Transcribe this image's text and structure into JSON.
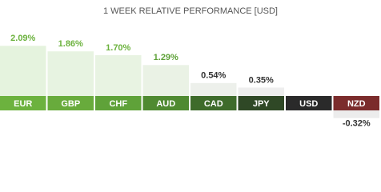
{
  "chart_data": {
    "type": "bar",
    "title": "1 WEEK RELATIVE PERFORMANCE [USD]",
    "categories": [
      "EUR",
      "GBP",
      "CHF",
      "AUD",
      "CAD",
      "JPY",
      "USD",
      "NZD"
    ],
    "values": [
      2.09,
      1.86,
      1.7,
      1.29,
      0.54,
      0.35,
      0,
      -0.32
    ],
    "value_labels": [
      "2.09%",
      "1.86%",
      "1.70%",
      "1.29%",
      "0.54%",
      "0.35%",
      null,
      "-0.32%"
    ],
    "colors": [
      "#e5f3de",
      "#e7f3e1",
      "#e8f3e2",
      "#eaf2e5",
      "#edf0eb",
      "#eeeeee",
      "#eeeeee",
      "#ececec"
    ],
    "category_colors": [
      "#6cb23e",
      "#68ab3c",
      "#5fa239",
      "#4f8a31",
      "#3e6b2b",
      "#2f4826",
      "#2a2a2a",
      "#7b2c2c"
    ],
    "value_label_colors": [
      "#6cb23e",
      "#6cb23e",
      "#6cb23e",
      "#5fa239",
      "#333333",
      "#333333",
      "#333333",
      "#333333"
    ]
  }
}
